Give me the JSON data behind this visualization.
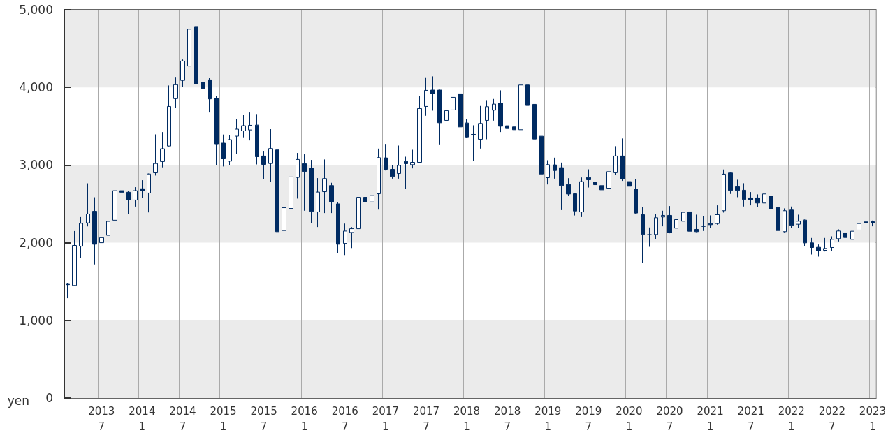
{
  "chart_data": {
    "type": "candlestick",
    "ylabel": "yen",
    "color": "#002b62",
    "grid": "x",
    "categories": [
      null,
      null,
      null,
      null,
      null,
      "2013\n7",
      null,
      null,
      null,
      null,
      null,
      "2014\n1",
      null,
      null,
      null,
      null,
      null,
      "2014\n7",
      null,
      null,
      null,
      null,
      null,
      "2015\n1",
      null,
      null,
      null,
      null,
      null,
      "2015\n7",
      null,
      null,
      null,
      null,
      null,
      "2016\n1",
      null,
      null,
      null,
      null,
      null,
      "2016\n7",
      null,
      null,
      null,
      null,
      null,
      "2017\n1",
      null,
      null,
      null,
      null,
      null,
      "2017\n7",
      null,
      null,
      null,
      null,
      null,
      "2018\n1",
      null,
      null,
      null,
      null,
      null,
      "2018\n7",
      null,
      null,
      null,
      null,
      null,
      "2019\n1",
      null,
      null,
      null,
      null,
      null,
      "2019\n7",
      null,
      null,
      null,
      null,
      null,
      "2020\n1",
      null,
      null,
      null,
      null,
      null,
      "2020\n7",
      null,
      null,
      null,
      null,
      null,
      "2021\n1",
      null,
      null,
      null,
      null,
      null,
      "2021\n7",
      null,
      null,
      null,
      null,
      null,
      "2022\n1",
      null,
      null,
      null,
      null,
      null,
      "2022\n7",
      null,
      null,
      null,
      null,
      null,
      "2023\n1"
    ],
    "ohlc": [
      [
        1465,
        1475,
        1285,
        1460
      ],
      [
        1450,
        2150,
        1445,
        1965
      ],
      [
        1955,
        2330,
        1805,
        2250
      ],
      [
        2255,
        2765,
        2210,
        2370
      ],
      [
        2405,
        2585,
        1720,
        1980
      ],
      [
        2000,
        2295,
        1990,
        2065
      ],
      [
        2095,
        2390,
        2065,
        2275
      ],
      [
        2290,
        2865,
        2285,
        2670
      ],
      [
        2670,
        2790,
        2600,
        2650
      ],
      [
        2650,
        2670,
        2365,
        2550
      ],
      [
        2550,
        2715,
        2465,
        2670
      ],
      [
        2695,
        2805,
        2575,
        2670
      ],
      [
        2640,
        2890,
        2390,
        2885
      ],
      [
        2900,
        3395,
        2865,
        3020
      ],
      [
        3045,
        3425,
        2970,
        3210
      ],
      [
        3245,
        4025,
        3240,
        3755
      ],
      [
        3855,
        4135,
        3740,
        4035
      ],
      [
        4090,
        4360,
        4005,
        4340
      ],
      [
        4275,
        4875,
        4255,
        4750
      ],
      [
        4785,
        4900,
        3700,
        4045
      ],
      [
        4067,
        4143,
        3497,
        3987
      ],
      [
        4097,
        4127,
        3677,
        3852
      ],
      [
        3857,
        3890,
        3003,
        3273
      ],
      [
        3282,
        3393,
        2982,
        3080
      ],
      [
        3050,
        3387,
        3000,
        3327
      ],
      [
        3372,
        3588,
        3147,
        3462
      ],
      [
        3440,
        3642,
        3357,
        3507
      ],
      [
        3452,
        3677,
        3317,
        3512
      ],
      [
        3515,
        3657,
        3008,
        3107
      ],
      [
        3117,
        3183,
        2817,
        3008
      ],
      [
        3020,
        3462,
        2781,
        3213
      ],
      [
        3195,
        3290,
        2082,
        2142
      ],
      [
        2157,
        2583,
        2133,
        2450
      ],
      [
        2441,
        2853,
        2397,
        2847
      ],
      [
        2841,
        3156,
        2568,
        3072
      ],
      [
        3018,
        3138,
        2412,
        2916
      ],
      [
        2958,
        3066,
        2253,
        2403
      ],
      [
        2397,
        2832,
        2202,
        2652
      ],
      [
        2657,
        3072,
        2382,
        2826
      ],
      [
        2736,
        2772,
        2382,
        2528
      ],
      [
        2500,
        2520,
        1870,
        1980
      ],
      [
        1991,
        2246,
        1841,
        2150
      ],
      [
        2132,
        2201,
        1931,
        2180
      ],
      [
        2180,
        2636,
        2135,
        2585
      ],
      [
        2585,
        2590,
        2471,
        2525
      ],
      [
        2525,
        2612,
        2216,
        2606
      ],
      [
        2630,
        3212,
        2426,
        3095
      ],
      [
        3092,
        3272,
        2930,
        2945
      ],
      [
        2945,
        2996,
        2825,
        2852
      ],
      [
        2891,
        3251,
        2825,
        2996
      ],
      [
        3047,
        3107,
        2697,
        3017
      ],
      [
        3005,
        3197,
        2957,
        3035
      ],
      [
        3035,
        3890,
        3030,
        3728
      ],
      [
        3755,
        4130,
        3635,
        3962
      ],
      [
        3965,
        4142,
        3701,
        3917
      ],
      [
        3965,
        3970,
        3266,
        3545
      ],
      [
        3575,
        3872,
        3500,
        3701
      ],
      [
        3710,
        3890,
        3551,
        3872
      ],
      [
        3917,
        3935,
        3386,
        3491
      ],
      [
        3542,
        3596,
        3355,
        3362
      ],
      [
        3395,
        3512,
        3050,
        3390
      ],
      [
        3332,
        3761,
        3212,
        3536
      ],
      [
        3575,
        3836,
        3332,
        3752
      ],
      [
        3707,
        3851,
        3572,
        3785
      ],
      [
        3797,
        3962,
        3425,
        3500
      ],
      [
        3506,
        3605,
        3296,
        3470
      ],
      [
        3491,
        3536,
        3272,
        3455
      ],
      [
        3455,
        4106,
        3410,
        4031
      ],
      [
        4031,
        4145,
        3572,
        3767
      ],
      [
        3782,
        4130,
        3311,
        3335
      ],
      [
        3371,
        3425,
        2645,
        2885
      ],
      [
        2837,
        3062,
        2750,
        3005
      ],
      [
        3002,
        3095,
        2825,
        2930
      ],
      [
        2966,
        3032,
        2420,
        2735
      ],
      [
        2750,
        2831,
        2606,
        2627
      ],
      [
        2630,
        2636,
        2351,
        2408
      ],
      [
        2396,
        2840,
        2330,
        2786
      ],
      [
        2840,
        2945,
        2711,
        2810
      ],
      [
        2780,
        2825,
        2585,
        2747
      ],
      [
        2735,
        2756,
        2441,
        2681
      ],
      [
        2702,
        2951,
        2636,
        2915
      ],
      [
        2901,
        3243,
        2877,
        3117
      ],
      [
        3117,
        3342,
        2796,
        2823
      ],
      [
        2787,
        2841,
        2676,
        2727
      ],
      [
        2691,
        2823,
        2375,
        2382
      ],
      [
        2361,
        2457,
        1737,
        2106
      ],
      [
        2100,
        2196,
        1947,
        2105
      ],
      [
        2106,
        2367,
        2046,
        2322
      ],
      [
        2331,
        2412,
        2211,
        2352
      ],
      [
        2352,
        2472,
        2121,
        2127
      ],
      [
        2187,
        2397,
        2127,
        2298
      ],
      [
        2277,
        2457,
        2232,
        2391
      ],
      [
        2397,
        2427,
        2133,
        2148
      ],
      [
        2172,
        2361,
        2136,
        2142
      ],
      [
        2215,
        2343,
        2151,
        2210
      ],
      [
        2247,
        2352,
        2187,
        2232
      ],
      [
        2247,
        2481,
        2232,
        2361
      ],
      [
        2412,
        2943,
        2388,
        2883
      ],
      [
        2898,
        2905,
        2628,
        2673
      ],
      [
        2721,
        2811,
        2586,
        2673
      ],
      [
        2676,
        2766,
        2466,
        2556
      ],
      [
        2577,
        2652,
        2481,
        2553
      ],
      [
        2577,
        2622,
        2457,
        2511
      ],
      [
        2511,
        2751,
        2502,
        2628
      ],
      [
        2601,
        2622,
        2367,
        2433
      ],
      [
        2451,
        2487,
        2148,
        2157
      ],
      [
        2142,
        2442,
        2133,
        2412
      ],
      [
        2421,
        2466,
        2193,
        2223
      ],
      [
        2238,
        2361,
        2187,
        2277
      ],
      [
        2292,
        2298,
        1956,
        1998
      ],
      [
        1998,
        2061,
        1848,
        1938
      ],
      [
        1941,
        1977,
        1821,
        1893
      ],
      [
        1902,
        2061,
        1887,
        1926
      ],
      [
        1938,
        2082,
        1893,
        2043
      ],
      [
        2052,
        2172,
        2016,
        2151
      ],
      [
        2127,
        2133,
        1992,
        2067
      ],
      [
        2043,
        2172,
        2031,
        2148
      ],
      [
        2163,
        2328,
        2151,
        2247
      ],
      [
        2268,
        2352,
        2181,
        2256
      ],
      [
        2271,
        2286,
        2211,
        2256
      ]
    ],
    "ylim": [
      0,
      5000
    ],
    "yticks": [
      0,
      {
        "value": 1000,
        "label": "1,000"
      },
      {
        "value": 2000,
        "label": "2,000"
      },
      {
        "value": 3000,
        "label": "3,000"
      },
      {
        "value": 4000,
        "label": "4,000"
      },
      {
        "value": 5000,
        "label": "5,000"
      }
    ]
  }
}
